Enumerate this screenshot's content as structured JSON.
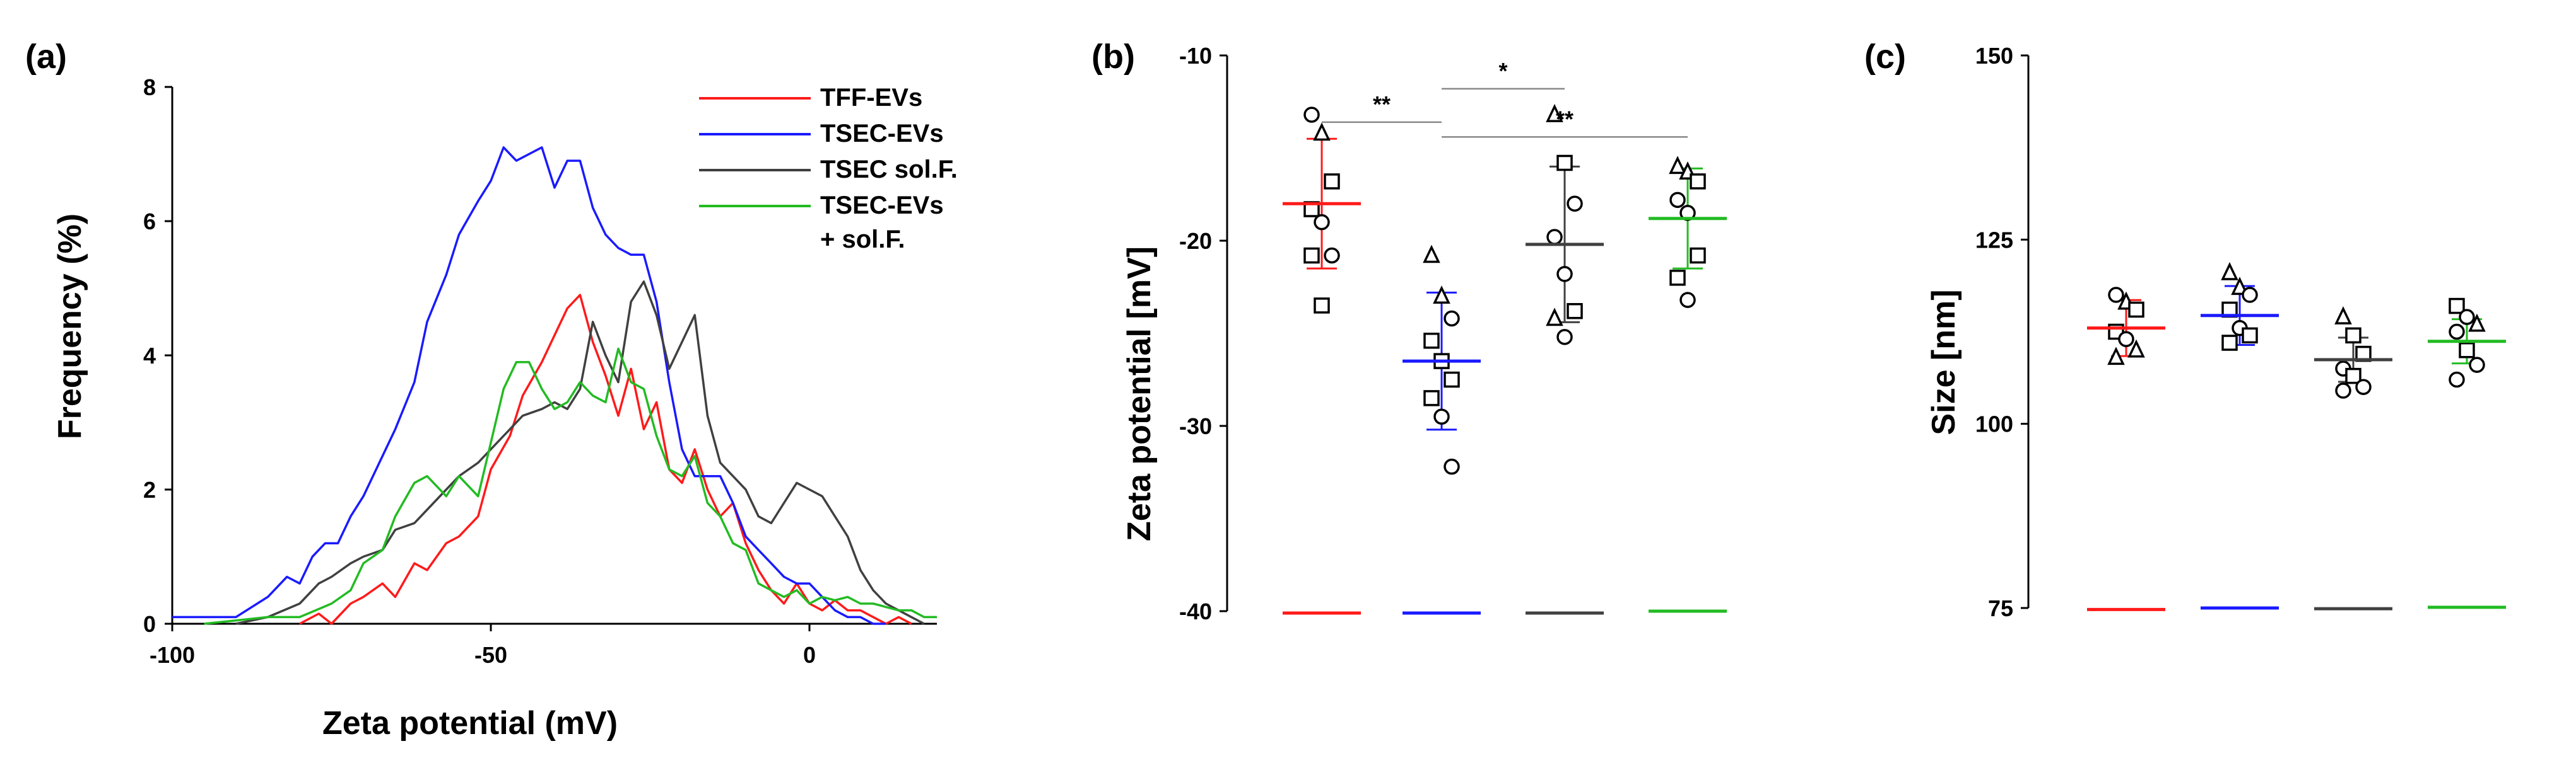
{
  "panels": {
    "a": "(a)",
    "b": "(b)",
    "c": "(c)"
  },
  "chart_data": [
    {
      "id": "a",
      "type": "line",
      "xlabel": "Zeta potential (mV)",
      "ylabel": "Frequency (%)",
      "xlim": [
        -100,
        20
      ],
      "ylim": [
        0,
        8
      ],
      "xticks": [
        -100,
        -50,
        0
      ],
      "yticks": [
        0,
        2,
        4,
        6,
        8
      ],
      "legend_position": "top-right",
      "series": [
        {
          "name": "TFF-EVs",
          "legend": [
            "TFF-EVs"
          ],
          "color": "#ff1a1a",
          "x": [
            -80,
            -77,
            -75,
            -72,
            -70,
            -67,
            -65,
            -62,
            -60,
            -57,
            -55,
            -52,
            -50,
            -47,
            -45,
            -42,
            -40,
            -38,
            -36,
            -34,
            -32,
            -30,
            -28,
            -26,
            -24,
            -22,
            -20,
            -18,
            -16,
            -14,
            -12,
            -10,
            -8,
            -6,
            -4,
            -2,
            0,
            2,
            4,
            6,
            8,
            10,
            12,
            14,
            16
          ],
          "y": [
            0,
            0.15,
            0,
            0.3,
            0.4,
            0.6,
            0.4,
            0.9,
            0.8,
            1.2,
            1.3,
            1.6,
            2.3,
            2.8,
            3.4,
            3.9,
            4.3,
            4.7,
            4.9,
            4.2,
            3.7,
            3.1,
            3.8,
            2.9,
            3.3,
            2.3,
            2.1,
            2.6,
            2.0,
            1.6,
            1.8,
            1.2,
            0.8,
            0.5,
            0.3,
            0.6,
            0.3,
            0.2,
            0.35,
            0.2,
            0.2,
            0.1,
            0,
            0.1,
            0
          ]
        },
        {
          "name": "TSEC-EVs",
          "legend": [
            "TSEC-EVs"
          ],
          "color": "#1a1aff",
          "x": [
            -100,
            -95,
            -90,
            -85,
            -82,
            -80,
            -78,
            -76,
            -74,
            -72,
            -70,
            -67,
            -65,
            -62,
            -60,
            -57,
            -55,
            -52,
            -50,
            -48,
            -46,
            -44,
            -42,
            -40,
            -38,
            -36,
            -34,
            -32,
            -30,
            -28,
            -26,
            -24,
            -22,
            -20,
            -18,
            -16,
            -14,
            -12,
            -10,
            -8,
            -6,
            -4,
            -2,
            0,
            2,
            4,
            6,
            8,
            10,
            12
          ],
          "y": [
            0.1,
            0.1,
            0.1,
            0.4,
            0.7,
            0.6,
            1.0,
            1.2,
            1.2,
            1.6,
            1.9,
            2.5,
            2.9,
            3.6,
            4.5,
            5.2,
            5.8,
            6.3,
            6.6,
            7.1,
            6.9,
            7.0,
            7.1,
            6.5,
            6.9,
            6.9,
            6.2,
            5.8,
            5.6,
            5.5,
            5.5,
            4.8,
            3.6,
            2.6,
            2.2,
            2.2,
            2.2,
            1.8,
            1.3,
            1.1,
            0.9,
            0.7,
            0.6,
            0.6,
            0.4,
            0.2,
            0.1,
            0.1,
            0,
            0
          ]
        },
        {
          "name": "TSEC sol.F.",
          "legend": [
            "TSEC sol.F."
          ],
          "color": "#404040",
          "x": [
            -90,
            -85,
            -80,
            -77,
            -75,
            -72,
            -70,
            -67,
            -65,
            -62,
            -60,
            -57,
            -55,
            -52,
            -50,
            -47,
            -45,
            -42,
            -40,
            -38,
            -36,
            -34,
            -32,
            -30,
            -28,
            -26,
            -24,
            -22,
            -20,
            -18,
            -16,
            -14,
            -12,
            -10,
            -8,
            -6,
            -4,
            -2,
            0,
            2,
            4,
            6,
            8,
            10,
            12,
            14,
            16,
            18
          ],
          "y": [
            0,
            0.1,
            0.3,
            0.6,
            0.7,
            0.9,
            1.0,
            1.1,
            1.4,
            1.5,
            1.7,
            2.0,
            2.2,
            2.4,
            2.6,
            2.9,
            3.1,
            3.2,
            3.3,
            3.2,
            3.5,
            4.5,
            4.0,
            3.6,
            4.8,
            5.1,
            4.6,
            3.8,
            4.2,
            4.6,
            3.1,
            2.4,
            2.2,
            2.0,
            1.6,
            1.5,
            1.8,
            2.1,
            2.0,
            1.9,
            1.6,
            1.3,
            0.8,
            0.5,
            0.3,
            0.2,
            0.1,
            0
          ]
        },
        {
          "name": "TSEC-EVs + sol.F.",
          "legend": [
            "TSEC-EVs",
            "+ sol.F."
          ],
          "color": "#22bb22",
          "x": [
            -95,
            -90,
            -85,
            -80,
            -75,
            -72,
            -70,
            -67,
            -65,
            -62,
            -60,
            -57,
            -55,
            -52,
            -50,
            -48,
            -46,
            -44,
            -42,
            -40,
            -38,
            -36,
            -34,
            -32,
            -30,
            -28,
            -26,
            -24,
            -22,
            -20,
            -18,
            -16,
            -14,
            -12,
            -10,
            -8,
            -6,
            -4,
            -2,
            0,
            2,
            4,
            6,
            8,
            10,
            12,
            14,
            16,
            18,
            20
          ],
          "y": [
            0,
            0.05,
            0.1,
            0.1,
            0.3,
            0.5,
            0.9,
            1.1,
            1.6,
            2.1,
            2.2,
            1.9,
            2.2,
            1.9,
            2.7,
            3.5,
            3.9,
            3.9,
            3.5,
            3.2,
            3.3,
            3.6,
            3.4,
            3.3,
            4.1,
            3.6,
            3.5,
            2.8,
            2.3,
            2.2,
            2.5,
            1.8,
            1.6,
            1.2,
            1.1,
            0.6,
            0.5,
            0.4,
            0.5,
            0.3,
            0.4,
            0.35,
            0.4,
            0.3,
            0.3,
            0.25,
            0.2,
            0.2,
            0.1,
            0.1
          ]
        }
      ]
    },
    {
      "id": "b",
      "type": "scatter",
      "xlabel": "",
      "ylabel": "Zeta potential  [mV]",
      "ylim": [
        -40,
        -10
      ],
      "yticks": [
        -40,
        -30,
        -20,
        -10
      ],
      "groups": [
        {
          "name": "TFF-EVs",
          "color": "#ff1a1a",
          "mean": -18.0,
          "sd": 3.5,
          "ybase": -40.1,
          "points": [
            {
              "v": -13.2,
              "m": "circle"
            },
            {
              "v": -14.2,
              "m": "triangle"
            },
            {
              "v": -16.8,
              "m": "square"
            },
            {
              "v": -18.3,
              "m": "square"
            },
            {
              "v": -19.0,
              "m": "circle"
            },
            {
              "v": -20.8,
              "m": "circle"
            },
            {
              "v": -20.8,
              "m": "square"
            },
            {
              "v": -23.5,
              "m": "square"
            }
          ]
        },
        {
          "name": "TSEC-EVs",
          "color": "#1a1aff",
          "mean": -26.5,
          "sd": 3.7,
          "ybase": -40.1,
          "points": [
            {
              "v": -20.8,
              "m": "triangle"
            },
            {
              "v": -23.0,
              "m": "triangle"
            },
            {
              "v": -24.2,
              "m": "circle"
            },
            {
              "v": -25.4,
              "m": "square"
            },
            {
              "v": -26.5,
              "m": "square"
            },
            {
              "v": -27.5,
              "m": "square"
            },
            {
              "v": -28.5,
              "m": "square"
            },
            {
              "v": -29.5,
              "m": "circle"
            },
            {
              "v": -32.2,
              "m": "circle"
            }
          ]
        },
        {
          "name": "TSEC sol.F.",
          "color": "#404040",
          "mean": -20.2,
          "sd": 4.2,
          "ybase": -40.1,
          "points": [
            {
              "v": -13.2,
              "m": "triangle"
            },
            {
              "v": -15.8,
              "m": "square"
            },
            {
              "v": -18.0,
              "m": "circle"
            },
            {
              "v": -19.8,
              "m": "circle"
            },
            {
              "v": -21.8,
              "m": "circle"
            },
            {
              "v": -23.8,
              "m": "square"
            },
            {
              "v": -24.2,
              "m": "triangle"
            },
            {
              "v": -25.2,
              "m": "circle"
            }
          ]
        },
        {
          "name": "TSEC-EVs + sol.F.",
          "color": "#22bb22",
          "mean": -18.8,
          "sd": 2.7,
          "ybase": -40.0,
          "points": [
            {
              "v": -16.0,
              "m": "triangle"
            },
            {
              "v": -16.3,
              "m": "triangle"
            },
            {
              "v": -16.8,
              "m": "square"
            },
            {
              "v": -17.8,
              "m": "circle"
            },
            {
              "v": -18.5,
              "m": "circle"
            },
            {
              "v": -20.8,
              "m": "square"
            },
            {
              "v": -22.0,
              "m": "square"
            },
            {
              "v": -23.2,
              "m": "circle"
            }
          ]
        }
      ],
      "significance": [
        {
          "from": 0,
          "to": 1,
          "label": "**",
          "y": -13.6
        },
        {
          "from": 1,
          "to": 2,
          "label": "*",
          "y": -11.8
        },
        {
          "from": 1,
          "to": 3,
          "label": "**",
          "y": -14.4
        }
      ]
    },
    {
      "id": "c",
      "type": "scatter",
      "xlabel": "",
      "ylabel": "Size  [nm]",
      "ylim": [
        75,
        150
      ],
      "yticks": [
        75,
        100,
        125,
        150
      ],
      "groups": [
        {
          "name": "TFF-EVs",
          "color": "#ff1a1a",
          "mean": 113.0,
          "sd": 3.8,
          "ybase": 74.8,
          "points": [
            {
              "v": 117.5,
              "m": "circle"
            },
            {
              "v": 116.5,
              "m": "triangle"
            },
            {
              "v": 115.5,
              "m": "square"
            },
            {
              "v": 112.5,
              "m": "square"
            },
            {
              "v": 111.5,
              "m": "circle"
            },
            {
              "v": 110.0,
              "m": "triangle"
            },
            {
              "v": 109.0,
              "m": "triangle"
            }
          ]
        },
        {
          "name": "TSEC-EVs",
          "color": "#1a1aff",
          "mean": 114.7,
          "sd": 4.0,
          "ybase": 75.0,
          "points": [
            {
              "v": 120.5,
              "m": "triangle"
            },
            {
              "v": 118.5,
              "m": "triangle"
            },
            {
              "v": 117.5,
              "m": "circle"
            },
            {
              "v": 115.5,
              "m": "square"
            },
            {
              "v": 113.0,
              "m": "circle"
            },
            {
              "v": 112.0,
              "m": "square"
            },
            {
              "v": 111.0,
              "m": "square"
            }
          ]
        },
        {
          "name": "TSEC sol.F.",
          "color": "#404040",
          "mean": 108.7,
          "sd": 3.0,
          "ybase": 74.9,
          "points": [
            {
              "v": 114.5,
              "m": "triangle"
            },
            {
              "v": 112.0,
              "m": "square"
            },
            {
              "v": 109.5,
              "m": "square"
            },
            {
              "v": 107.5,
              "m": "circle"
            },
            {
              "v": 106.5,
              "m": "square"
            },
            {
              "v": 105.0,
              "m": "circle"
            },
            {
              "v": 104.5,
              "m": "circle"
            }
          ]
        },
        {
          "name": "TSEC-EVs + sol.F.",
          "color": "#22bb22",
          "mean": 111.2,
          "sd": 3.0,
          "ybase": 75.1,
          "points": [
            {
              "v": 116.0,
              "m": "square"
            },
            {
              "v": 114.5,
              "m": "circle"
            },
            {
              "v": 113.5,
              "m": "triangle"
            },
            {
              "v": 112.5,
              "m": "circle"
            },
            {
              "v": 110.0,
              "m": "square"
            },
            {
              "v": 108.0,
              "m": "circle"
            },
            {
              "v": 106.0,
              "m": "circle"
            }
          ]
        }
      ]
    }
  ]
}
